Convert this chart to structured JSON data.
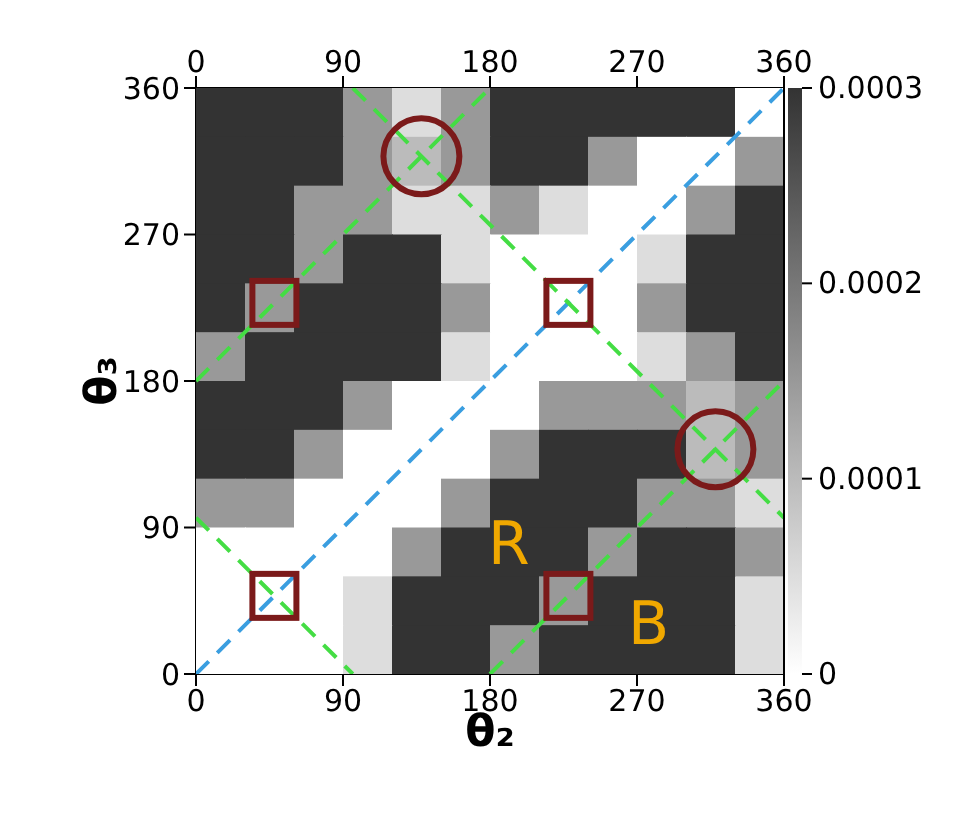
{
  "chart_data": {
    "type": "heatmap",
    "xlabel": "θ₂",
    "ylabel": "θ₃",
    "x": [
      15,
      45,
      75,
      105,
      135,
      165,
      195,
      225,
      255,
      285,
      315,
      345
    ],
    "xlim": [
      0,
      360
    ],
    "xticks": [
      0,
      90,
      180,
      270,
      360
    ],
    "x2lim": [
      0,
      360
    ],
    "x2ticks": [
      0,
      90,
      180,
      270,
      360
    ],
    "ylim": [
      0,
      360
    ],
    "yticks": [
      0,
      90,
      180,
      270,
      360
    ],
    "clim": [
      0,
      0.0003
    ],
    "cticks": [
      0,
      0.0001,
      0.0002,
      0.0003
    ],
    "cells": [
      [
        0.0003,
        0.0003,
        0.0003,
        0.00015,
        5e-05,
        0.00015,
        0.0003,
        0.0003,
        0.0003,
        0.0003,
        0.0003,
        0
      ],
      [
        0.0003,
        0.0003,
        0.0003,
        0.00015,
        0.0001,
        0.00015,
        0.0003,
        0.0003,
        0.00015,
        0,
        0,
        0.00015
      ],
      [
        0.0003,
        0.0003,
        0.00015,
        0.00015,
        5e-05,
        5e-05,
        0.00015,
        5e-05,
        0,
        0,
        0.00015,
        0.0003
      ],
      [
        0.0003,
        0.0003,
        0.00015,
        0.0003,
        0.0003,
        5e-05,
        0,
        0,
        0,
        5e-05,
        0.0003,
        0.0003
      ],
      [
        0.0003,
        0.00015,
        0.0003,
        0.0003,
        0.0003,
        0.00015,
        0,
        0,
        0,
        0.00015,
        0.0003,
        0.0003
      ],
      [
        0.00015,
        0.0003,
        0.0003,
        0.0003,
        0.0003,
        5e-05,
        0,
        0,
        0,
        5e-05,
        0.00015,
        0.0003
      ],
      [
        0.0003,
        0.0003,
        0.0003,
        0.00015,
        0,
        0,
        0,
        0.00015,
        0.00015,
        0.00015,
        0.0001,
        0.00015
      ],
      [
        0.0003,
        0.0003,
        0.00015,
        0,
        0,
        0,
        0.00015,
        0.0003,
        0.0003,
        0.0003,
        0.0001,
        0.00015
      ],
      [
        0.00015,
        0.00015,
        0,
        0,
        0,
        0.00015,
        0.0003,
        0.0003,
        0.0003,
        0.00015,
        0.00015,
        5e-05
      ],
      [
        0,
        0,
        0,
        0,
        0.00015,
        0.0003,
        0.0003,
        0.0003,
        0.00015,
        0.0003,
        0.0003,
        0.00015
      ],
      [
        0,
        0,
        0,
        5e-05,
        0.0003,
        0.0003,
        0.0003,
        0.00015,
        0.0003,
        0.0003,
        0.0003,
        5e-05
      ],
      [
        0,
        0,
        0,
        5e-05,
        0.0003,
        0.0003,
        0.00015,
        0.0003,
        0.0003,
        0.0003,
        0.0003,
        5e-05
      ]
    ],
    "series": [
      {
        "type": "line",
        "color": "#3a9ee0",
        "line_style": "dashed",
        "x": [
          0,
          360
        ],
        "values": [
          0,
          360
        ]
      },
      {
        "type": "line",
        "color": "#44dd44",
        "line_style": "dashed",
        "x": [
          0,
          180
        ],
        "values": [
          180,
          360
        ]
      },
      {
        "type": "line",
        "color": "#44dd44",
        "line_style": "dashed",
        "x": [
          180,
          360
        ],
        "values": [
          0,
          180
        ]
      },
      {
        "type": "line",
        "color": "#44dd44",
        "line_style": "dashed",
        "x": [
          0,
          96
        ],
        "values": [
          96,
          0
        ]
      },
      {
        "type": "line",
        "color": "#44dd44",
        "line_style": "dashed",
        "x": [
          96,
          360
        ],
        "values": [
          360,
          96
        ]
      },
      {
        "type": "scatter",
        "color": "#7b1a1a",
        "marker": "square",
        "x": [
          48,
          228,
          48,
          228
        ],
        "values": [
          48,
          228,
          228,
          48
        ]
      },
      {
        "type": "scatter",
        "color": "#7b1a1a",
        "marker": "circle",
        "x": [
          138,
          318
        ],
        "values": [
          318,
          138
        ]
      }
    ],
    "annotations": [
      "R",
      "B"
    ]
  }
}
